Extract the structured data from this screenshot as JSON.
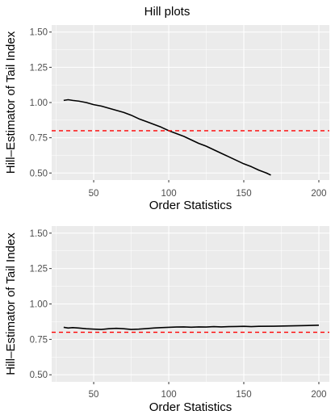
{
  "title": "Hill plots",
  "chart_data": [
    {
      "type": "line",
      "xlabel": "Order Statistics",
      "ylabel": "Hill–Estimator of Tail Index",
      "xlim": [
        22,
        207
      ],
      "ylim": [
        0.45,
        1.55
      ],
      "x_ticks": [
        50,
        100,
        150,
        200
      ],
      "x_tick_labels": [
        "50",
        "100",
        "150",
        "200"
      ],
      "y_ticks": [
        0.5,
        0.75,
        1.0,
        1.25,
        1.5
      ],
      "y_tick_labels": [
        "0.50",
        "0.75",
        "1.00",
        "1.25",
        "1.50"
      ],
      "grid": true,
      "reference_line": {
        "y": 0.8,
        "color": "#ff0000",
        "style": "dashed"
      },
      "series": [
        {
          "x": [
            30,
            33,
            36,
            40,
            45,
            50,
            55,
            60,
            65,
            70,
            75,
            80,
            85,
            90,
            95,
            100,
            105,
            110,
            115,
            120,
            125,
            130,
            135,
            140,
            145,
            150,
            155,
            160,
            165,
            168
          ],
          "y": [
            1.015,
            1.02,
            1.015,
            1.01,
            1.0,
            0.985,
            0.975,
            0.96,
            0.945,
            0.93,
            0.91,
            0.885,
            0.865,
            0.845,
            0.825,
            0.8,
            0.78,
            0.76,
            0.735,
            0.71,
            0.69,
            0.665,
            0.64,
            0.615,
            0.59,
            0.565,
            0.545,
            0.52,
            0.5,
            0.485
          ]
        }
      ]
    },
    {
      "type": "line",
      "xlabel": "Order Statistics",
      "ylabel": "Hill–Estimator of Tail Index",
      "xlim": [
        22,
        207
      ],
      "ylim": [
        0.45,
        1.55
      ],
      "x_ticks": [
        50,
        100,
        150,
        200
      ],
      "x_tick_labels": [
        "50",
        "100",
        "150",
        "200"
      ],
      "y_ticks": [
        0.5,
        0.75,
        1.0,
        1.25,
        1.5
      ],
      "y_tick_labels": [
        "0.50",
        "0.75",
        "1.00",
        "1.25",
        "1.50"
      ],
      "grid": true,
      "reference_line": {
        "y": 0.8,
        "color": "#ff0000",
        "style": "dashed"
      },
      "series": [
        {
          "x": [
            30,
            33,
            36,
            40,
            45,
            50,
            55,
            60,
            65,
            70,
            75,
            80,
            85,
            90,
            95,
            100,
            105,
            110,
            115,
            120,
            125,
            130,
            135,
            140,
            145,
            150,
            155,
            160,
            170,
            180,
            190,
            200
          ],
          "y": [
            0.835,
            0.83,
            0.833,
            0.83,
            0.825,
            0.822,
            0.82,
            0.825,
            0.828,
            0.825,
            0.82,
            0.822,
            0.826,
            0.83,
            0.833,
            0.835,
            0.837,
            0.838,
            0.836,
            0.838,
            0.837,
            0.84,
            0.838,
            0.84,
            0.841,
            0.842,
            0.84,
            0.842,
            0.843,
            0.845,
            0.847,
            0.85
          ]
        }
      ]
    }
  ]
}
